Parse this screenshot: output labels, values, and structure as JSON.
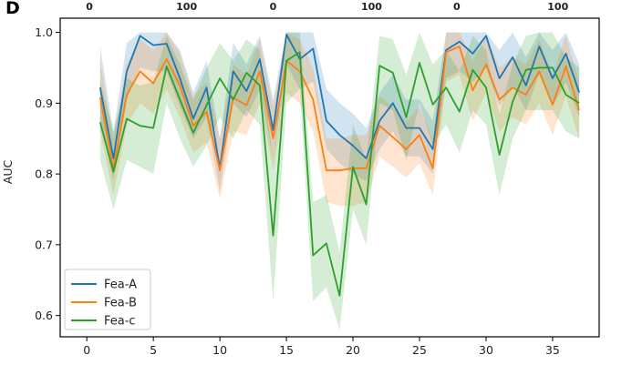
{
  "panel_label": "D",
  "chart_data": {
    "type": "line",
    "title": "",
    "xlabel": "",
    "ylabel": "AUC",
    "xlim": [
      -2,
      38.5
    ],
    "ylim": [
      0.57,
      1.02
    ],
    "xticks": [
      0,
      5,
      10,
      15,
      20,
      25,
      30,
      35
    ],
    "yticks": [
      0.6,
      0.7,
      0.8,
      0.9,
      1.0
    ],
    "ytick_labels": [
      "0.6",
      "0.7",
      "0.8",
      "0.9",
      "1.0"
    ],
    "top_axis_labels": [
      {
        "x": 0.2,
        "label": "0"
      },
      {
        "x": 7.5,
        "label": "100"
      },
      {
        "x": 14,
        "label": "0"
      },
      {
        "x": 21.4,
        "label": "100"
      },
      {
        "x": 27.8,
        "label": "0"
      },
      {
        "x": 35.4,
        "label": "100"
      }
    ],
    "grid": false,
    "legend_position": "lower-left",
    "x": [
      1,
      2,
      3,
      4,
      5,
      6,
      7,
      8,
      9,
      10,
      11,
      12,
      13,
      14,
      15,
      16,
      17,
      18,
      19,
      20,
      21,
      22,
      23,
      24,
      25,
      26,
      27,
      28,
      29,
      30,
      31,
      32,
      33,
      34,
      35,
      36,
      37
    ],
    "series": [
      {
        "name": "Fea-A",
        "color": "#1f77b4",
        "values": [
          0.922,
          0.822,
          0.945,
          0.995,
          0.982,
          0.984,
          0.935,
          0.878,
          0.922,
          0.808,
          0.945,
          0.917,
          0.962,
          0.862,
          0.997,
          0.962,
          0.977,
          0.875,
          0.855,
          0.84,
          0.822,
          0.875,
          0.9,
          0.865,
          0.865,
          0.835,
          0.975,
          0.987,
          0.97,
          0.995,
          0.935,
          0.965,
          0.925,
          0.98,
          0.935,
          0.97,
          0.915
        ],
        "lower": [
          0.875,
          0.79,
          0.905,
          0.95,
          0.945,
          0.945,
          0.895,
          0.85,
          0.88,
          0.775,
          0.9,
          0.88,
          0.92,
          0.82,
          0.955,
          0.92,
          0.93,
          0.835,
          0.815,
          0.8,
          0.79,
          0.835,
          0.86,
          0.825,
          0.825,
          0.8,
          0.935,
          0.945,
          0.93,
          0.95,
          0.895,
          0.925,
          0.89,
          0.94,
          0.895,
          0.93,
          0.88
        ],
        "upper": [
          0.98,
          0.86,
          0.985,
          1.0,
          1.0,
          1.0,
          0.975,
          0.915,
          0.96,
          0.85,
          0.985,
          0.955,
          0.995,
          0.905,
          1.0,
          1.0,
          1.0,
          0.92,
          0.9,
          0.885,
          0.865,
          0.915,
          0.94,
          0.905,
          0.905,
          0.875,
          1.0,
          1.0,
          1.0,
          1.0,
          0.975,
          1.0,
          0.965,
          1.0,
          0.975,
          1.0,
          0.955
        ]
      },
      {
        "name": "Fea-B",
        "color": "#ff7f0e",
        "values": [
          0.908,
          0.808,
          0.912,
          0.945,
          0.928,
          0.962,
          0.925,
          0.868,
          0.888,
          0.805,
          0.908,
          0.897,
          0.945,
          0.85,
          0.96,
          0.945,
          0.905,
          0.805,
          0.805,
          0.808,
          0.808,
          0.868,
          0.852,
          0.835,
          0.855,
          0.808,
          0.972,
          0.98,
          0.918,
          0.955,
          0.905,
          0.922,
          0.912,
          0.945,
          0.898,
          0.952,
          0.89
        ],
        "lower": [
          0.86,
          0.77,
          0.87,
          0.9,
          0.885,
          0.92,
          0.88,
          0.83,
          0.845,
          0.765,
          0.86,
          0.855,
          0.9,
          0.805,
          0.915,
          0.9,
          0.86,
          0.76,
          0.755,
          0.755,
          0.76,
          0.825,
          0.81,
          0.795,
          0.815,
          0.77,
          0.93,
          0.94,
          0.875,
          0.915,
          0.86,
          0.88,
          0.87,
          0.9,
          0.855,
          0.91,
          0.85
        ],
        "upper": [
          0.96,
          0.85,
          0.955,
          0.99,
          0.975,
          1.0,
          0.97,
          0.91,
          0.93,
          0.85,
          0.955,
          0.94,
          0.99,
          0.895,
          1.0,
          0.99,
          0.95,
          0.85,
          0.85,
          0.855,
          0.855,
          0.91,
          0.895,
          0.875,
          0.895,
          0.85,
          1.0,
          1.0,
          0.96,
          0.995,
          0.95,
          0.965,
          0.955,
          0.99,
          0.94,
          0.995,
          0.93
        ]
      },
      {
        "name": "Fea-c",
        "color": "#2ca02c",
        "values": [
          0.873,
          0.803,
          0.878,
          0.868,
          0.865,
          0.952,
          0.905,
          0.858,
          0.897,
          0.935,
          0.905,
          0.943,
          0.925,
          0.713,
          0.96,
          0.972,
          0.685,
          0.702,
          0.628,
          0.81,
          0.757,
          0.953,
          0.943,
          0.88,
          0.957,
          0.898,
          0.922,
          0.888,
          0.947,
          0.922,
          0.827,
          0.902,
          0.947,
          0.95,
          0.95,
          0.912,
          0.9
        ],
        "lower": [
          0.82,
          0.75,
          0.82,
          0.81,
          0.8,
          0.9,
          0.85,
          0.81,
          0.84,
          0.88,
          0.85,
          0.89,
          0.87,
          0.62,
          0.9,
          0.92,
          0.62,
          0.64,
          0.58,
          0.75,
          0.7,
          0.9,
          0.89,
          0.82,
          0.9,
          0.84,
          0.87,
          0.83,
          0.89,
          0.87,
          0.77,
          0.85,
          0.89,
          0.89,
          0.89,
          0.86,
          0.85
        ],
        "upper": [
          0.93,
          0.86,
          0.935,
          0.925,
          0.93,
          0.995,
          0.955,
          0.905,
          0.95,
          0.985,
          0.96,
          0.99,
          0.975,
          0.82,
          1.0,
          1.0,
          0.76,
          0.77,
          0.69,
          0.87,
          0.82,
          0.995,
          0.99,
          0.94,
          1.0,
          0.955,
          0.975,
          0.945,
          0.995,
          0.975,
          0.885,
          0.955,
          0.995,
          1.0,
          1.0,
          0.965,
          0.95
        ]
      }
    ]
  }
}
